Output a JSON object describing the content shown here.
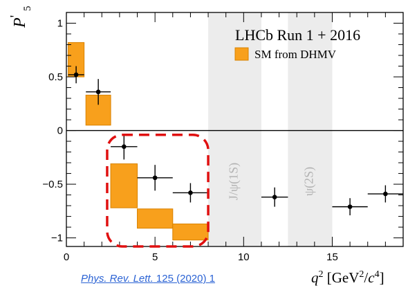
{
  "chart_data": {
    "type": "scatter",
    "ylabel_symbol": "P",
    "ylabel_prime": "'",
    "ylabel_sub": "5",
    "xlabel_parts": [
      "q",
      "2",
      " [GeV",
      "2",
      "/",
      "c",
      "4",
      "]"
    ],
    "xlim": [
      0,
      19
    ],
    "ylim": [
      -1.08,
      1.1
    ],
    "x_ticks": [
      0,
      5,
      10,
      15
    ],
    "x_tick_labels": [
      "0",
      "5",
      "10",
      "15"
    ],
    "y_ticks": [
      1,
      0.5,
      0,
      -0.5,
      -1
    ],
    "y_tick_labels": [
      "1",
      "0.5",
      "0",
      "−0.5",
      "−1"
    ],
    "grid": false,
    "experiment_label": "LHCb Run 1 + 2016",
    "legend": {
      "position": "top-right",
      "entry": "SM from DHMV",
      "color": "#f8a01c"
    },
    "veto_bands": [
      {
        "label": "J/ψ(1S)",
        "x": [
          8.0,
          11.0
        ]
      },
      {
        "label": "ψ(2S)",
        "x": [
          12.5,
          15.0
        ]
      }
    ],
    "sm_prediction_boxes": [
      {
        "x": [
          0.1,
          1.0
        ],
        "y": [
          0.5,
          0.82
        ]
      },
      {
        "x": [
          1.1,
          2.5
        ],
        "y": [
          0.05,
          0.33
        ]
      },
      {
        "x": [
          2.5,
          4.0
        ],
        "y": [
          -0.72,
          -0.31
        ]
      },
      {
        "x": [
          4.0,
          6.0
        ],
        "y": [
          -0.91,
          -0.73
        ]
      },
      {
        "x": [
          6.0,
          8.0
        ],
        "y": [
          -1.02,
          -0.87
        ]
      }
    ],
    "measurements": [
      {
        "x": 0.55,
        "xerr": 0.45,
        "y": 0.52,
        "yerr": [
          0.08,
          0.08
        ]
      },
      {
        "x": 1.8,
        "xerr": 0.7,
        "y": 0.36,
        "yerr": [
          0.12,
          0.12
        ]
      },
      {
        "x": 3.25,
        "xerr": 0.75,
        "y": -0.15,
        "yerr": [
          0.12,
          0.12
        ]
      },
      {
        "x": 5.0,
        "xerr": 1.0,
        "y": -0.44,
        "yerr": [
          0.12,
          0.12
        ]
      },
      {
        "x": 7.0,
        "xerr": 1.0,
        "y": -0.58,
        "yerr": [
          0.09,
          0.09
        ]
      },
      {
        "x": 11.75,
        "xerr": 0.75,
        "y": -0.62,
        "yerr": [
          0.09,
          0.09
        ]
      },
      {
        "x": 16.0,
        "xerr": 1.0,
        "y": -0.71,
        "yerr": [
          0.08,
          0.08
        ]
      },
      {
        "x": 18.0,
        "xerr": 1.0,
        "y": -0.59,
        "yerr": [
          0.08,
          0.08
        ]
      }
    ],
    "highlight_region": {
      "x": [
        2.3,
        8.0
      ],
      "y": [
        -1.08,
        -0.04
      ],
      "color": "#e01010"
    }
  },
  "citation": {
    "journal": "Phys. Rev. Lett.",
    "ref": " 125 (2020) 1"
  }
}
